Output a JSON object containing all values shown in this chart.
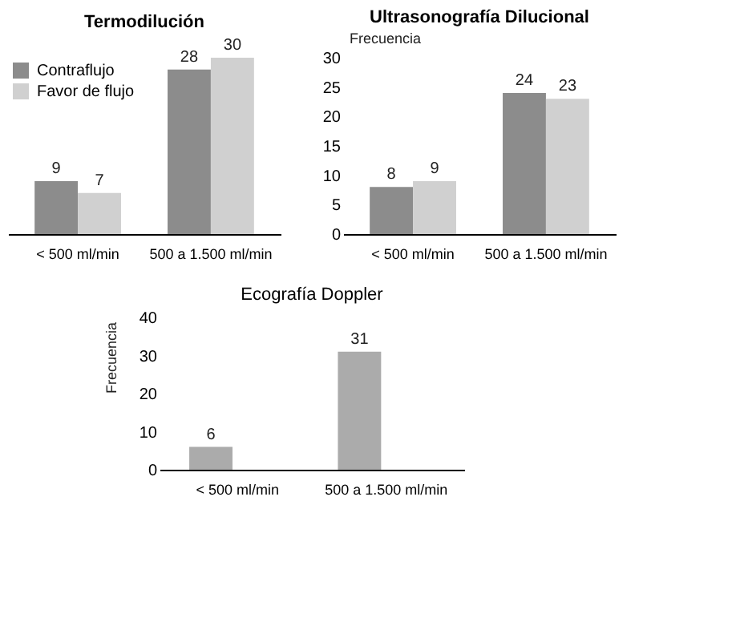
{
  "chart_data": [
    {
      "type": "bar",
      "title": "Termodilución",
      "categories": [
        "< 500 ml/min",
        "500 a 1.500 ml/min"
      ],
      "data_labels": true,
      "legend": "top left",
      "grid": false,
      "tick_labels": "x",
      "series": [
        {
          "name": "Contraflujo",
          "color": "#8c8c8c",
          "values": [
            9,
            28
          ]
        },
        {
          "name": "Favor de flujo",
          "color": "#d0d0d0",
          "values": [
            7,
            30
          ]
        }
      ]
    },
    {
      "type": "bar",
      "title": "Ultrasonografía Dilucional",
      "categories": [
        "< 500 ml/min",
        "500 a 1.500 ml/min"
      ],
      "ylabel": "Frecuencia",
      "ylim": [
        0,
        30
      ],
      "yticks": [
        0,
        5,
        10,
        15,
        20,
        25,
        30
      ],
      "data_labels": true,
      "grid": false,
      "series": [
        {
          "color": "#8c8c8c",
          "values": [
            8,
            24
          ]
        },
        {
          "color": "#d0d0d0",
          "values": [
            9,
            23
          ]
        }
      ]
    },
    {
      "type": "bar",
      "title": "Ecografía Doppler",
      "categories": [
        "< 500 ml/min",
        "500 a 1.500 ml/min"
      ],
      "ylabel": "Frecuencia",
      "ylim": [
        0,
        40
      ],
      "yticks": [
        0,
        10,
        20,
        30,
        40
      ],
      "data_labels": true,
      "grid": false,
      "series": [
        {
          "color": "#ababab",
          "values": [
            6,
            31
          ]
        }
      ]
    }
  ]
}
